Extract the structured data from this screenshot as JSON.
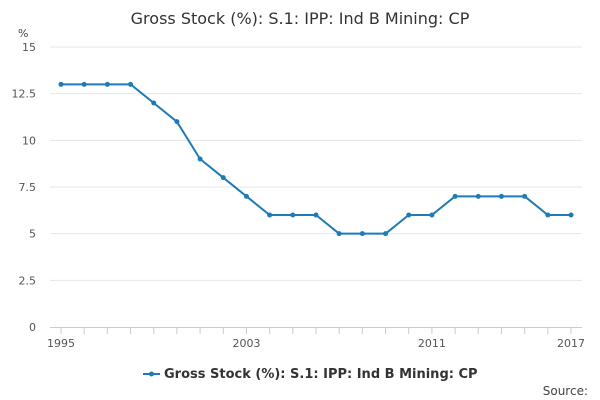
{
  "chart_data": {
    "type": "line",
    "title": "Gross Stock (%): S.1: IPP: Ind B Mining: CP",
    "y_unit": "%",
    "ylim": [
      0,
      15
    ],
    "y_ticks": [
      "0",
      "2.5",
      "5",
      "7.5",
      "10",
      "12.5",
      "15"
    ],
    "x_tick_labels": [
      "1995",
      "2003",
      "2011",
      "2017"
    ],
    "x": [
      1995,
      1996,
      1997,
      1998,
      1999,
      2000,
      2001,
      2002,
      2003,
      2004,
      2005,
      2006,
      2007,
      2008,
      2009,
      2010,
      2011,
      2012,
      2013,
      2014,
      2015,
      2016,
      2017
    ],
    "series": [
      {
        "name": "Gross Stock (%): S.1: IPP: Ind B Mining: CP",
        "values": [
          13,
          13,
          13,
          13,
          12,
          11,
          9,
          8,
          7,
          6,
          6,
          6,
          5,
          5,
          5,
          6,
          6,
          7,
          7,
          7,
          7,
          6,
          6
        ],
        "color": "#1f7bb6"
      }
    ],
    "grid": true,
    "legend_position": "bottom-center",
    "source_label": "Source:"
  }
}
